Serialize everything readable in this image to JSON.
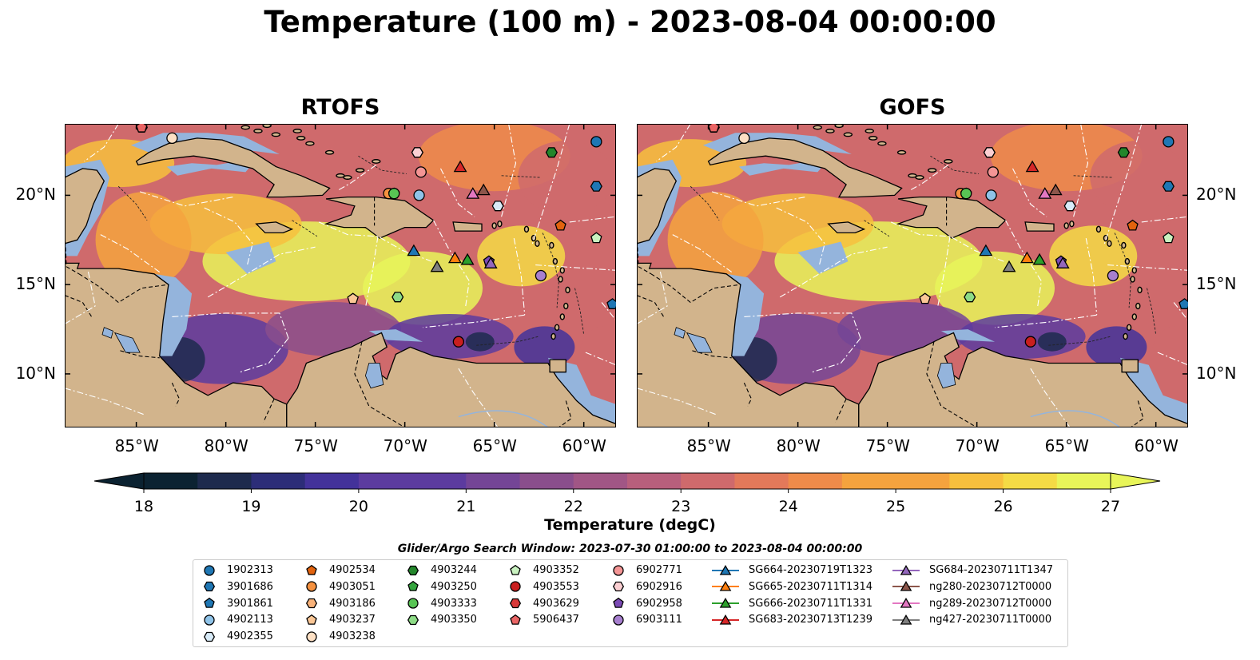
{
  "title": "Temperature (100 m) - 2023-08-04 00:00:00",
  "panels": [
    {
      "title": "RTOFS"
    },
    {
      "title": "GOFS"
    }
  ],
  "colorbar": {
    "label": "Temperature (degC)",
    "ticks": [
      "18",
      "19",
      "20",
      "21",
      "22",
      "23",
      "24",
      "25",
      "26",
      "27"
    ],
    "range": [
      18,
      27
    ],
    "colors": [
      "#0b2231",
      "#1d2a4d",
      "#2c2d78",
      "#43329a",
      "#5c3b9f",
      "#744596",
      "#8a4e8c",
      "#a15685",
      "#b85f7c",
      "#cf6a6c",
      "#e3795a",
      "#ef8b4a",
      "#f5a33e",
      "#f7bf3d",
      "#f4db45",
      "#e8f559"
    ]
  },
  "axes": {
    "lon_ticks": [
      "85°W",
      "80°W",
      "75°W",
      "70°W",
      "65°W",
      "60°W"
    ],
    "lat_ticks": [
      "20°N",
      "15°N",
      "10°N"
    ]
  },
  "search_window": "Glider/Argo Search Window: 2023-07-30 01:00:00 to 2023-08-04 00:00:00",
  "legend": [
    {
      "label": "1902313",
      "marker": "circle",
      "color": "#1f77b4"
    },
    {
      "label": "3901686",
      "marker": "hexagon",
      "color": "#1f77b4"
    },
    {
      "label": "3901861",
      "marker": "pentagon",
      "color": "#1f77b4"
    },
    {
      "label": "4902113",
      "marker": "circle",
      "color": "#8fc3e8"
    },
    {
      "label": "4902355",
      "marker": "hexagon",
      "color": "#d8ebf8"
    },
    {
      "label": "4902534",
      "marker": "pentagon",
      "color": "#e2630e"
    },
    {
      "label": "4903051",
      "marker": "circle",
      "color": "#f5913f"
    },
    {
      "label": "4903186",
      "marker": "hexagon",
      "color": "#f8b27a"
    },
    {
      "label": "4903237",
      "marker": "pentagon",
      "color": "#fbc796"
    },
    {
      "label": "4903238",
      "marker": "circle",
      "color": "#fde0c4"
    },
    {
      "label": "4903244",
      "marker": "hexagon",
      "color": "#23862b"
    },
    {
      "label": "4903250",
      "marker": "pentagon",
      "color": "#35a43e"
    },
    {
      "label": "4903333",
      "marker": "circle",
      "color": "#58c454"
    },
    {
      "label": "4903350",
      "marker": "hexagon",
      "color": "#8ddb86"
    },
    {
      "label": "4903352",
      "marker": "pentagon",
      "color": "#c9f2c0"
    },
    {
      "label": "4903553",
      "marker": "circle",
      "color": "#c91f1f"
    },
    {
      "label": "4903629",
      "marker": "hexagon",
      "color": "#d83838"
    },
    {
      "label": "5906437",
      "marker": "pentagon",
      "color": "#ea6565"
    },
    {
      "label": "6902771",
      "marker": "circle",
      "color": "#f49595"
    },
    {
      "label": "6902916",
      "marker": "hexagon",
      "color": "#fbcfd2"
    },
    {
      "label": "6902958",
      "marker": "pentagon",
      "color": "#7b4ab5"
    },
    {
      "label": "6903111",
      "marker": "circle",
      "color": "#a77fcf"
    },
    {
      "label": "SG664-20230719T1323",
      "marker": "triangle",
      "color": "#1f77b4"
    },
    {
      "label": "SG665-20230711T1314",
      "marker": "triangle",
      "color": "#ff7f0e"
    },
    {
      "label": "SG666-20230711T1331",
      "marker": "triangle",
      "color": "#2ca02c"
    },
    {
      "label": "SG683-20230713T1239",
      "marker": "triangle",
      "color": "#d62728"
    },
    {
      "label": "SG684-20230711T1347",
      "marker": "triangle",
      "color": "#9467bd"
    },
    {
      "label": "ng280-20230712T0000",
      "marker": "triangle",
      "color": "#8c564b"
    },
    {
      "label": "ng289-20230712T0000",
      "marker": "triangle",
      "color": "#e377c2"
    },
    {
      "label": "ng427-20230711T0000",
      "marker": "triangle",
      "color": "#7f7f7f"
    }
  ],
  "observations": [
    {
      "id": "1902313",
      "lon": -59.3,
      "lat": 23.0
    },
    {
      "id": "3901686",
      "lon": -59.3,
      "lat": 20.5
    },
    {
      "id": "3901861",
      "lon": -58.4,
      "lat": 13.9
    },
    {
      "id": "4902113",
      "lon": -69.2,
      "lat": 20.0
    },
    {
      "id": "4902355",
      "lon": -64.8,
      "lat": 19.4
    },
    {
      "id": "4902534",
      "lon": -61.3,
      "lat": 18.3
    },
    {
      "id": "4903051",
      "lon": -70.9,
      "lat": 20.1
    },
    {
      "id": "4903186",
      "lon": -69.3,
      "lat": 22.4
    },
    {
      "id": "4903237",
      "lon": -72.9,
      "lat": 14.2
    },
    {
      "id": "4903238",
      "lon": -83.0,
      "lat": 23.2
    },
    {
      "id": "4903244",
      "lon": -61.8,
      "lat": 22.4
    },
    {
      "id": "4903250",
      "lon": -70.6,
      "lat": 20.1
    },
    {
      "id": "4903333",
      "lon": -70.6,
      "lat": 20.1
    },
    {
      "id": "4903350",
      "lon": -70.4,
      "lat": 14.3
    },
    {
      "id": "4903352",
      "lon": -59.3,
      "lat": 17.6
    },
    {
      "id": "4903553",
      "lon": -67.0,
      "lat": 11.8
    },
    {
      "id": "4903629",
      "lon": -84.7,
      "lat": 23.8
    },
    {
      "id": "5906437",
      "lon": -84.7,
      "lat": 23.8
    },
    {
      "id": "6902771",
      "lon": -69.1,
      "lat": 21.3
    },
    {
      "id": "6902916",
      "lon": -69.3,
      "lat": 22.4
    },
    {
      "id": "6902958",
      "lon": -65.3,
      "lat": 16.3
    },
    {
      "id": "6903111",
      "lon": -62.4,
      "lat": 15.5
    },
    {
      "id": "SG664-20230719T1323",
      "lon": -69.5,
      "lat": 16.9
    },
    {
      "id": "SG665-20230711T1314",
      "lon": -67.2,
      "lat": 16.5
    },
    {
      "id": "SG666-20230711T1331",
      "lon": -66.5,
      "lat": 16.4
    },
    {
      "id": "SG683-20230713T1239",
      "lon": -66.9,
      "lat": 21.6
    },
    {
      "id": "SG684-20230711T1347",
      "lon": -65.2,
      "lat": 16.2
    },
    {
      "id": "ng280-20230712T0000",
      "lon": -65.6,
      "lat": 20.3
    },
    {
      "id": "ng289-20230712T0000",
      "lon": -66.2,
      "lat": 20.1
    },
    {
      "id": "ng427-20230711T0000",
      "lon": -68.2,
      "lat": 16.0
    }
  ],
  "map_extent": {
    "lon": [
      -89,
      -58.2
    ],
    "lat": [
      7,
      24
    ]
  }
}
